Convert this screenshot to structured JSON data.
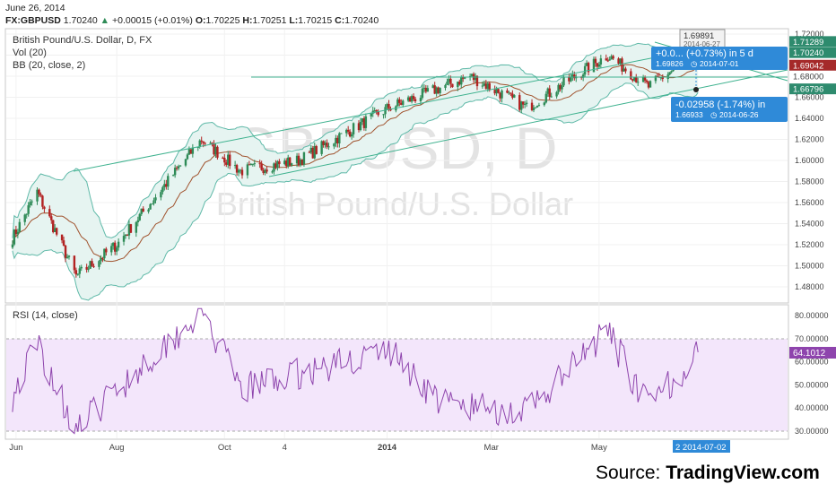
{
  "header": {
    "date": "June 26, 2014",
    "symbol": "FX:GBPUSD",
    "last": "1.70240",
    "change": "+0.00015 (+0.01%)",
    "o_label": "O:",
    "o": "1.70225",
    "h_label": "H:",
    "h": "1.70251",
    "l_label": "L:",
    "l": "1.70215",
    "c_label": "C:",
    "c": "1.70240"
  },
  "main_pane": {
    "title": "British Pound/U.S. Dollar, D, FX",
    "vol_label": "Vol (20)",
    "bb_label": "BB (20, close, 2)",
    "watermark_symbol": "GBPUSD, D",
    "watermark_name": "British Pound/U.S. Dollar"
  },
  "annotations": {
    "top_box_price": "1.69891",
    "top_box_date": "2014-06-27",
    "up_box_line1": "+0.0... (+0.73%) in 5 d",
    "up_box_price": "1.69826",
    "up_box_date": "2014-07-01",
    "down_box_line1": "-0.02958 (-1.74%) in",
    "down_box_price": "1.66933",
    "down_box_date": "2014-06-26"
  },
  "price_labels": [
    {
      "value": "1.71289",
      "color": "#2e8b6e"
    },
    {
      "value": "1.70240",
      "color": "#2e8b6e"
    },
    {
      "value": "1.69042",
      "color": "#a52a2a"
    },
    {
      "value": "1.68000",
      "color": "#ffffff"
    },
    {
      "value": "1.66796",
      "color": "#2e8b6e"
    }
  ],
  "rsi_pane": {
    "label": "RSI (14, close)",
    "current": "64.1012"
  },
  "x_axis": {
    "ticks": [
      "Jun",
      "Aug",
      "Oct",
      "4",
      "2014",
      "Mar",
      "May"
    ],
    "cursor_label": "2 2014-07-02"
  },
  "source": {
    "prefix": "Source: ",
    "brand": "TradingView.com"
  },
  "colors": {
    "up": "#2e8b57",
    "down": "#b22222",
    "bands": "#5fb9a8",
    "band_fill": "#e6f4f1",
    "basis": "#a0522d",
    "trend": "#3fb28f",
    "rsi": "#8e44ad",
    "rsi_fill": "#f3e6fb",
    "label_blue": "#2f8ad8"
  },
  "chart_data": [
    {
      "type": "candlestick",
      "title": "British Pound/U.S. Dollar, D, FX",
      "ylim": [
        1.47,
        1.725
      ],
      "yticks": [
        1.48,
        1.5,
        1.52,
        1.54,
        1.56,
        1.58,
        1.6,
        1.62,
        1.64,
        1.66,
        1.68,
        1.7,
        1.72
      ],
      "x_range": [
        "2013-06-01",
        "2014-07-02"
      ],
      "key_points": [
        {
          "date": "2013-06-01",
          "close": 1.52
        },
        {
          "date": "2013-06-17",
          "close": 1.57
        },
        {
          "date": "2013-07-09",
          "close": 1.49
        },
        {
          "date": "2013-08-01",
          "close": 1.52
        },
        {
          "date": "2013-09-18",
          "close": 1.62
        },
        {
          "date": "2013-10-10",
          "close": 1.59
        },
        {
          "date": "2013-11-12",
          "close": 1.6
        },
        {
          "date": "2014-01-02",
          "close": 1.65
        },
        {
          "date": "2014-02-17",
          "close": 1.68
        },
        {
          "date": "2014-03-21",
          "close": 1.65
        },
        {
          "date": "2014-05-06",
          "close": 1.7
        },
        {
          "date": "2014-05-29",
          "close": 1.67
        },
        {
          "date": "2014-06-26",
          "close": 1.7024
        }
      ],
      "overlays": [
        "Bollinger Bands (20, close, 2)",
        "trend channel",
        "horizontal line 1.68"
      ]
    },
    {
      "type": "line",
      "title": "RSI (14, close)",
      "ylim": [
        28,
        85
      ],
      "yticks": [
        30,
        40,
        50,
        60,
        70,
        80
      ],
      "bands": [
        30,
        70
      ],
      "key_points": [
        {
          "date": "2013-06-01",
          "value": 42
        },
        {
          "date": "2013-06-17",
          "value": 68
        },
        {
          "date": "2013-07-09",
          "value": 30
        },
        {
          "date": "2013-08-01",
          "value": 48
        },
        {
          "date": "2013-09-18",
          "value": 82
        },
        {
          "date": "2013-10-10",
          "value": 48
        },
        {
          "date": "2014-01-02",
          "value": 65
        },
        {
          "date": "2014-02-01",
          "value": 42
        },
        {
          "date": "2014-03-21",
          "value": 38
        },
        {
          "date": "2014-05-06",
          "value": 73
        },
        {
          "date": "2014-05-29",
          "value": 40
        },
        {
          "date": "2014-06-26",
          "value": 64.1012
        }
      ]
    }
  ]
}
